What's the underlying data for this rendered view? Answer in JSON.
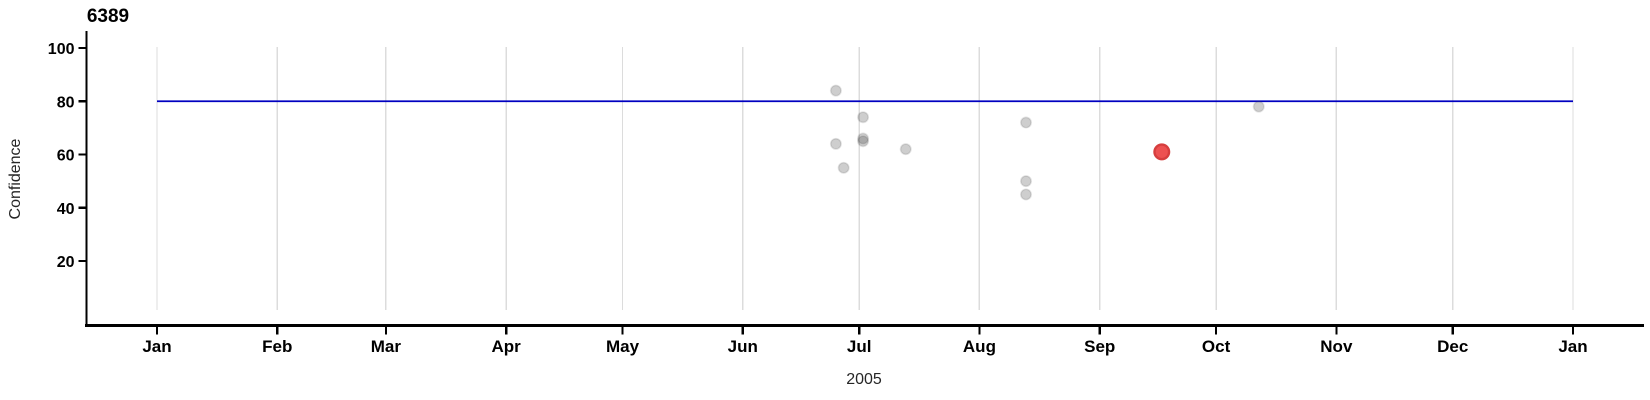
{
  "figure": {
    "title": "6389"
  },
  "chart_data": {
    "type": "scatter",
    "title": "6389",
    "xlabel": "2005",
    "ylabel": "Confidence",
    "x_domain": [
      "2005-01-01",
      "2006-01-01"
    ],
    "ylim": [
      0,
      103
    ],
    "grid": "vertical month gridlines only",
    "legend": "none",
    "y_ticks": [
      100,
      80,
      60,
      40,
      20
    ],
    "x_ticks": [
      {
        "date": "2005-01-01",
        "label": "Jan"
      },
      {
        "date": "2005-02-01",
        "label": "Feb"
      },
      {
        "date": "2005-03-01",
        "label": "Mar"
      },
      {
        "date": "2005-04-01",
        "label": "Apr"
      },
      {
        "date": "2005-05-01",
        "label": "May"
      },
      {
        "date": "2005-06-01",
        "label": "Jun"
      },
      {
        "date": "2005-07-01",
        "label": "Jul"
      },
      {
        "date": "2005-08-01",
        "label": "Aug"
      },
      {
        "date": "2005-09-01",
        "label": "Sep"
      },
      {
        "date": "2005-10-01",
        "label": "Oct"
      },
      {
        "date": "2005-11-01",
        "label": "Nov"
      },
      {
        "date": "2005-12-01",
        "label": "Dec"
      },
      {
        "date": "2006-01-01",
        "label": "Jan"
      }
    ],
    "reference_line": {
      "y": 80,
      "color": "#0000c0"
    },
    "points": [
      {
        "date": "2005-06-25",
        "confidence": 84,
        "highlight": false
      },
      {
        "date": "2005-06-25",
        "confidence": 64,
        "highlight": false
      },
      {
        "date": "2005-06-27",
        "confidence": 55,
        "highlight": false
      },
      {
        "date": "2005-07-02",
        "confidence": 74,
        "highlight": false
      },
      {
        "date": "2005-07-02",
        "confidence": 66,
        "highlight": false
      },
      {
        "date": "2005-07-02",
        "confidence": 65,
        "highlight": false
      },
      {
        "date": "2005-07-13",
        "confidence": 62,
        "highlight": false
      },
      {
        "date": "2005-08-13",
        "confidence": 72,
        "highlight": false
      },
      {
        "date": "2005-08-13",
        "confidence": 50,
        "highlight": false
      },
      {
        "date": "2005-08-13",
        "confidence": 45,
        "highlight": false
      },
      {
        "date": "2005-09-17",
        "confidence": 61,
        "highlight": true
      },
      {
        "date": "2005-10-12",
        "confidence": 78,
        "highlight": false
      }
    ],
    "colors": {
      "grid": "#dcdcdc",
      "axis": "#000000",
      "reference_line": "#0000c0",
      "point": "#404040",
      "point_opacity": 0.26,
      "highlight_fill": "#ed5151",
      "highlight_stroke": "#d63e3e"
    }
  }
}
